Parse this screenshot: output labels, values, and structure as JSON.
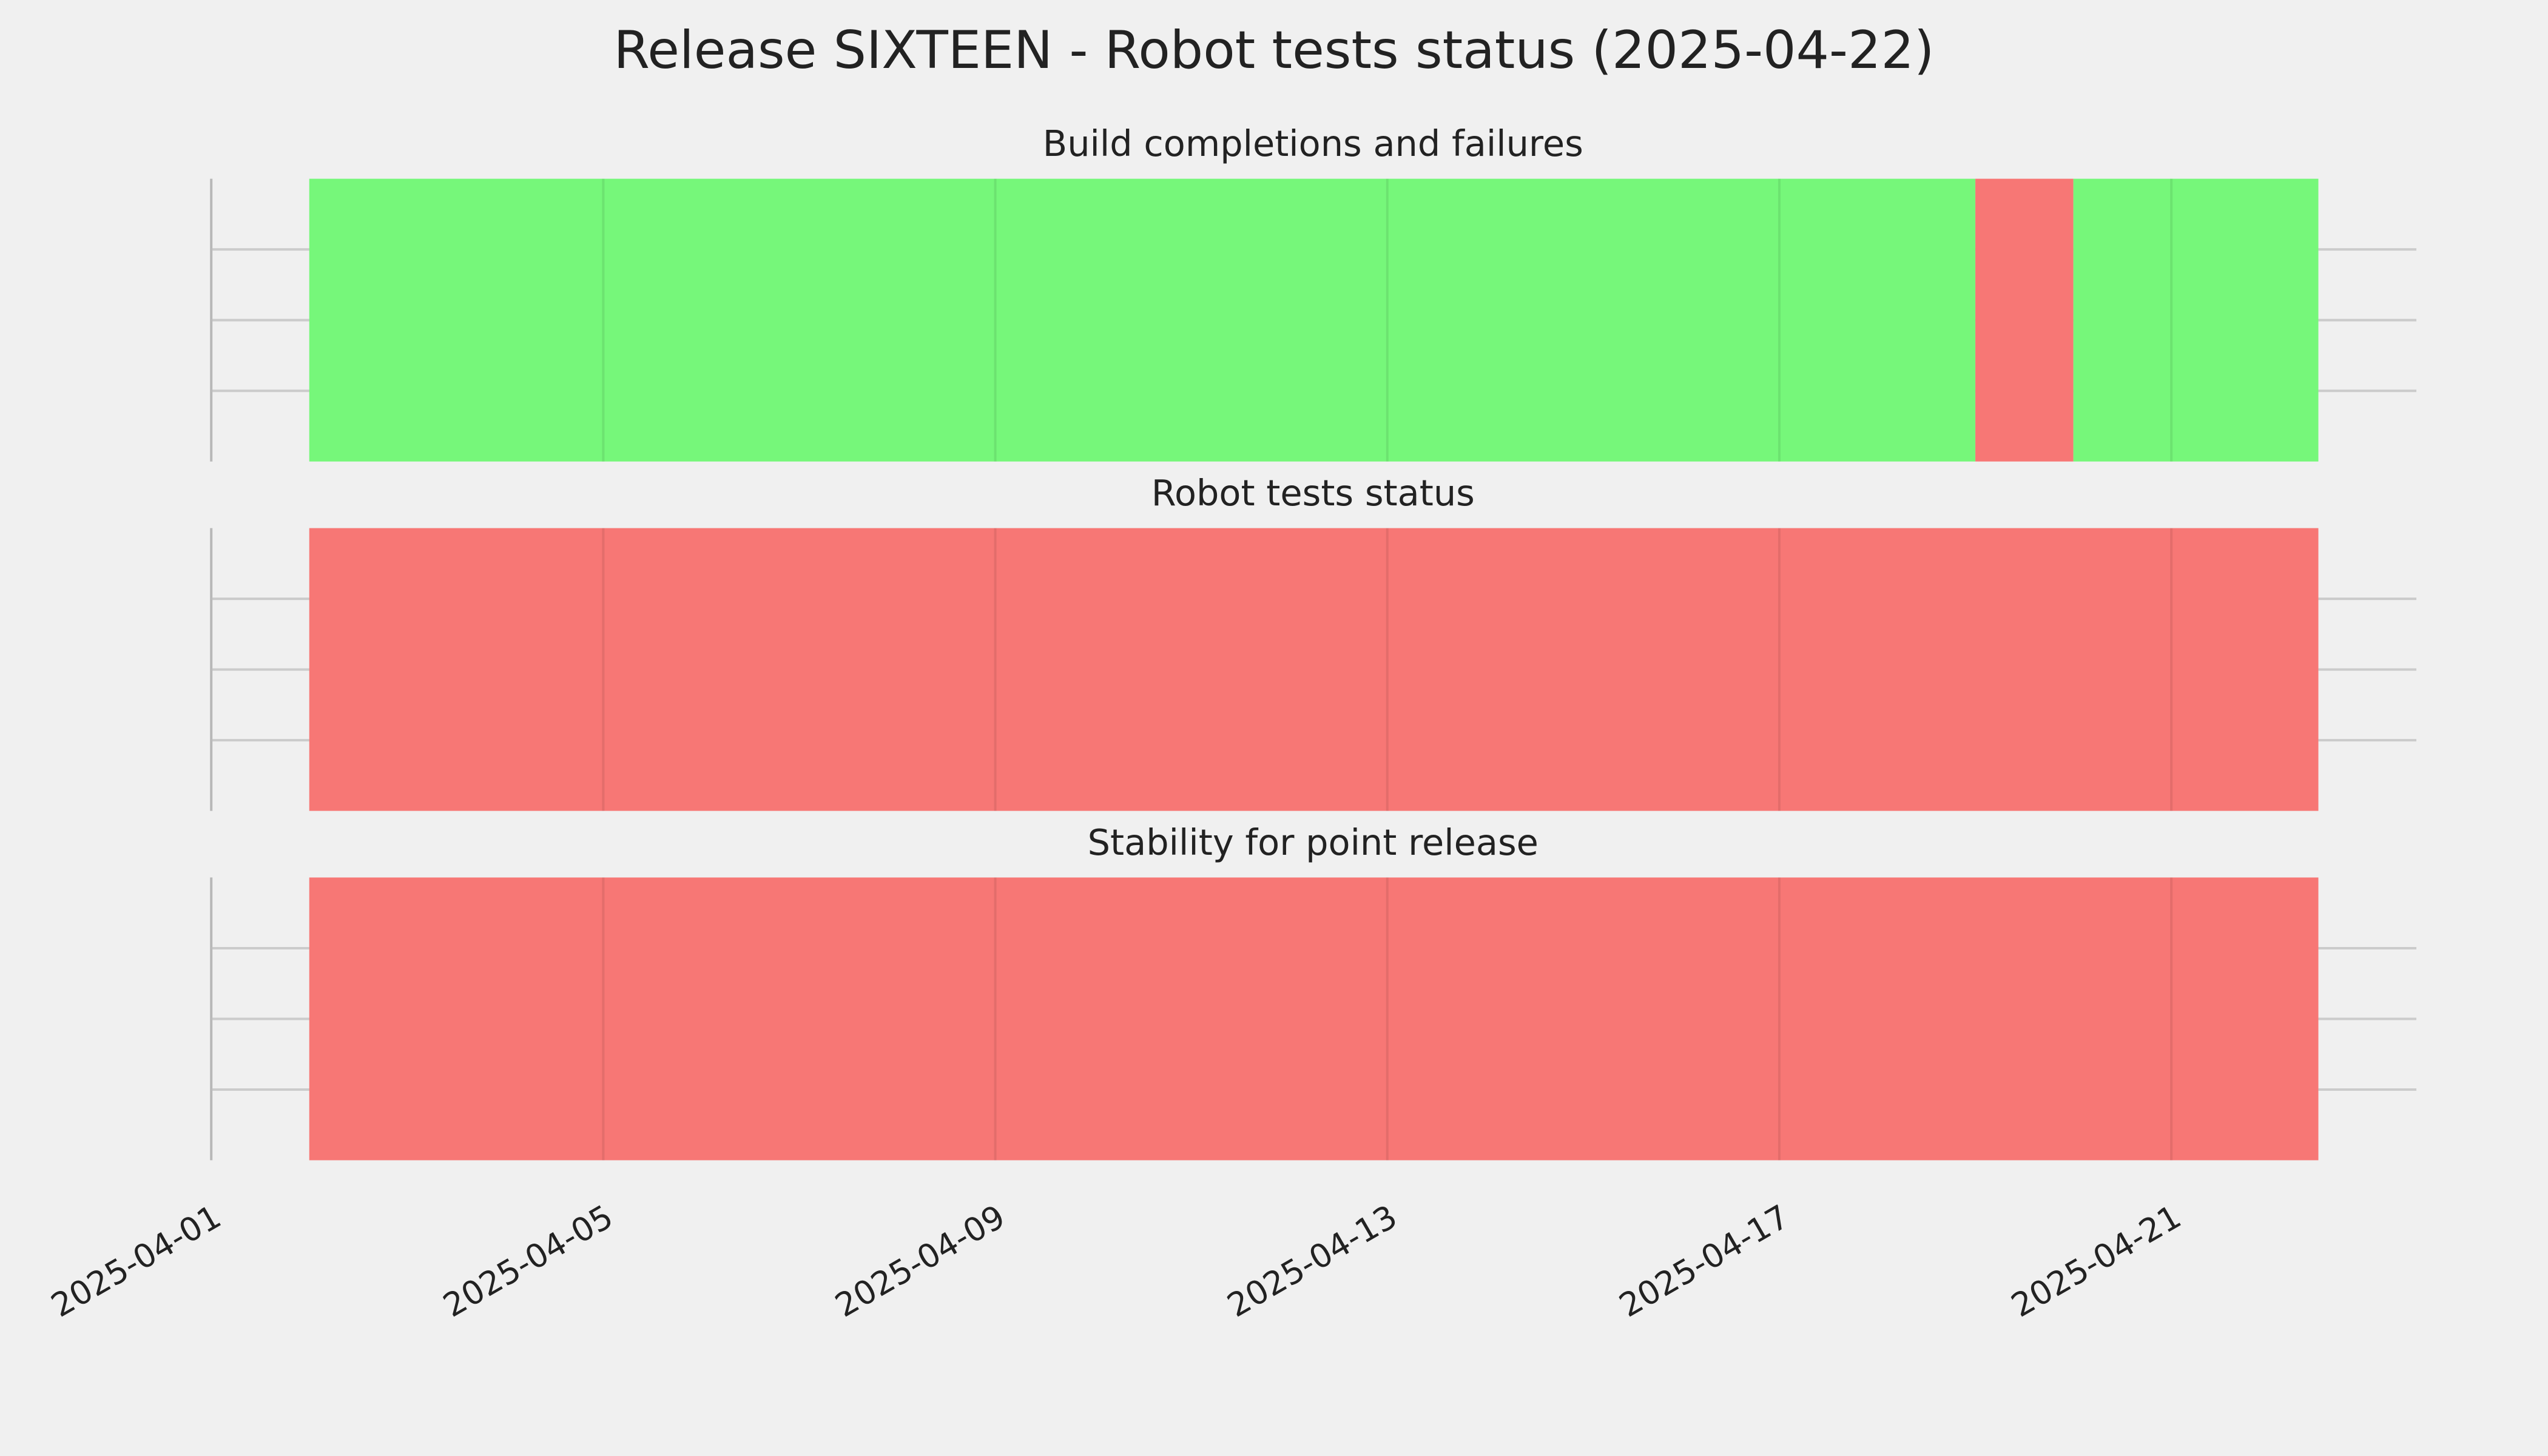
{
  "chart_data": {
    "type": "timeline",
    "title": "Release SIXTEEN - Robot tests status (2025-04-22)",
    "xlim": [
      "2025-04-01",
      "2025-04-23T12:00"
    ],
    "xticks": [
      "2025-04-01",
      "2025-04-05",
      "2025-04-09",
      "2025-04-13",
      "2025-04-17",
      "2025-04-21"
    ],
    "ylim": [
      0,
      1
    ],
    "yticks": [
      0.25,
      0.5,
      0.75
    ],
    "grid": true,
    "panels": [
      {
        "title": "Build completions and failures",
        "segments": [
          {
            "start": "2025-04-02",
            "end": "2025-04-19",
            "color": "#76f77a"
          },
          {
            "start": "2025-04-19",
            "end": "2025-04-20",
            "color": "#f77775"
          },
          {
            "start": "2025-04-20",
            "end": "2025-04-22T12:00",
            "color": "#76f77a"
          }
        ]
      },
      {
        "title": "Robot tests status",
        "segments": [
          {
            "start": "2025-04-02",
            "end": "2025-04-22T12:00",
            "color": "#f77775"
          }
        ]
      },
      {
        "title": "Stability for point release",
        "segments": [
          {
            "start": "2025-04-02",
            "end": "2025-04-22T12:00",
            "color": "#f77775"
          }
        ]
      }
    ]
  }
}
